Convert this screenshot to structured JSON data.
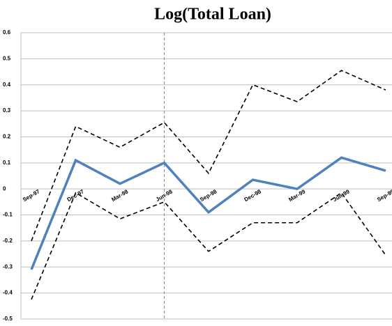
{
  "chart_data": {
    "type": "line",
    "title": "Log(Total Loan)",
    "categories": [
      "Sep-97",
      "Dec-97",
      "Mar-98",
      "Jun-98",
      "Sep-98",
      "Dec-98",
      "Mar-99",
      "Jun-99",
      "Sep-99"
    ],
    "series": [
      {
        "color": "#4f81bd",
        "style": "solid",
        "values": [
          -0.31,
          0.11,
          0.02,
          0.1,
          -0.09,
          0.035,
          0.0,
          0.12,
          0.07
        ]
      },
      {
        "color": "#000000",
        "style": "dashed",
        "values": [
          -0.2,
          0.24,
          0.16,
          0.255,
          0.06,
          0.4,
          0.335,
          0.455,
          0.38
        ]
      },
      {
        "color": "#000000",
        "style": "dashed",
        "values": [
          -0.425,
          -0.015,
          -0.115,
          -0.05,
          -0.24,
          -0.13,
          -0.13,
          -0.015,
          -0.255
        ]
      }
    ],
    "ylim": [
      -0.5,
      0.6
    ],
    "yticks": [
      -0.5,
      -0.4,
      -0.3,
      -0.2,
      -0.1,
      0,
      0.1,
      0.2,
      0.3,
      0.4,
      0.5,
      0.6
    ],
    "grid": true,
    "vline_index": 3
  }
}
